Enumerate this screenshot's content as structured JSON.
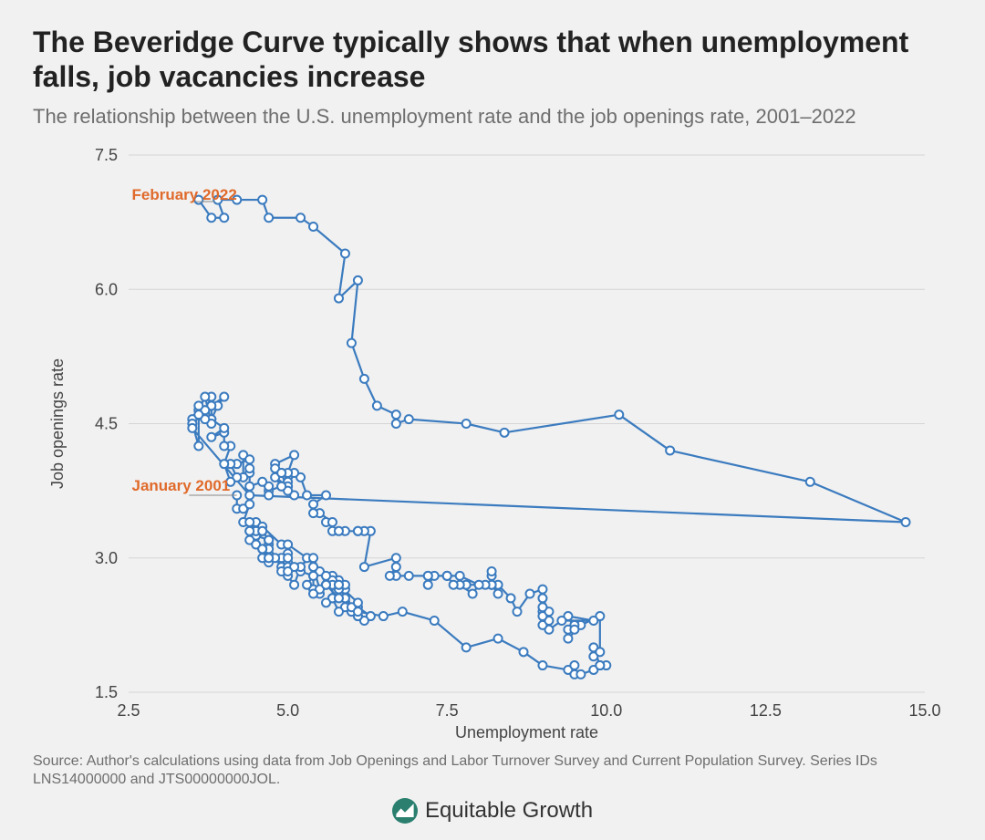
{
  "title": "The Beveridge Curve typically shows that when unemployment falls, job vacancies increase",
  "subtitle": "The relationship between the U.S. unemployment rate and the job openings rate, 2001–2022",
  "source": "Source: Author's calculations using data from Job Openings and Labor Turnover Survey and Current Population Survey. Series IDs LNS14000000 and JTS00000000JOL.",
  "brand": {
    "name": "Equitable Growth",
    "icon_bg": "#2a7f6f",
    "icon_fg": "#ffffff"
  },
  "chart": {
    "type": "connected-scatter",
    "background_color": "#f1f1f1",
    "grid_color": "#d5d5d5",
    "tick_color": "#444444",
    "tick_fontsize": 18,
    "axis_label_fontsize": 18,
    "xlabel": "Unemployment rate",
    "ylabel": "Job openings rate",
    "xlim": [
      2.5,
      15.0
    ],
    "ylim": [
      1.5,
      7.5
    ],
    "xticks": [
      2.5,
      5.0,
      7.5,
      10.0,
      12.5,
      15.0
    ],
    "yticks": [
      1.5,
      3.0,
      4.5,
      6.0,
      7.5
    ],
    "line_color": "#3b7bbf",
    "line_width": 2.2,
    "marker_fill": "#ffffff",
    "marker_stroke": "#3b7bbf",
    "marker_radius": 4.5,
    "annotations": [
      {
        "text": "February 2022",
        "color": "#e06a2b",
        "tx": 2.55,
        "ty": 7.0,
        "line_from_x": 3.55,
        "line_to_x": 3.85,
        "line_y": 6.98
      },
      {
        "text": "January 2001",
        "color": "#e06a2b",
        "tx": 2.55,
        "ty": 3.75,
        "line_from_x": 3.45,
        "line_to_x": 4.2,
        "line_y": 3.7
      }
    ],
    "data": [
      [
        4.2,
        3.7
      ],
      [
        4.2,
        3.55
      ],
      [
        4.3,
        3.55
      ],
      [
        4.4,
        3.6
      ],
      [
        4.3,
        3.4
      ],
      [
        4.5,
        3.4
      ],
      [
        4.6,
        3.35
      ],
      [
        4.9,
        3.15
      ],
      [
        5.0,
        3.15
      ],
      [
        5.3,
        3.0
      ],
      [
        5.5,
        2.85
      ],
      [
        5.7,
        2.75
      ],
      [
        5.7,
        2.8
      ],
      [
        5.7,
        2.7
      ],
      [
        5.7,
        2.7
      ],
      [
        5.9,
        2.65
      ],
      [
        5.8,
        2.75
      ],
      [
        5.8,
        2.65
      ],
      [
        5.8,
        2.65
      ],
      [
        5.7,
        2.75
      ],
      [
        5.7,
        2.55
      ],
      [
        5.7,
        2.7
      ],
      [
        5.9,
        2.7
      ],
      [
        6.0,
        2.4
      ],
      [
        5.8,
        2.7
      ],
      [
        5.9,
        2.55
      ],
      [
        5.9,
        2.45
      ],
      [
        6.0,
        2.4
      ],
      [
        6.1,
        2.45
      ],
      [
        6.3,
        2.35
      ],
      [
        6.2,
        2.3
      ],
      [
        6.1,
        2.35
      ],
      [
        6.1,
        2.35
      ],
      [
        6.0,
        2.45
      ],
      [
        5.8,
        2.4
      ],
      [
        5.7,
        2.55
      ],
      [
        5.7,
        2.55
      ],
      [
        5.6,
        2.5
      ],
      [
        5.8,
        2.55
      ],
      [
        5.6,
        2.7
      ],
      [
        5.6,
        2.7
      ],
      [
        5.6,
        2.8
      ],
      [
        5.5,
        2.6
      ],
      [
        5.4,
        2.65
      ],
      [
        5.4,
        2.9
      ],
      [
        5.5,
        2.65
      ],
      [
        5.4,
        2.6
      ],
      [
        5.4,
        2.8
      ],
      [
        5.3,
        2.7
      ],
      [
        5.4,
        2.8
      ],
      [
        5.2,
        2.85
      ],
      [
        5.2,
        2.9
      ],
      [
        5.1,
        2.7
      ],
      [
        5.0,
        2.8
      ],
      [
        5.0,
        2.9
      ],
      [
        4.9,
        2.9
      ],
      [
        5.0,
        3.0
      ],
      [
        5.0,
        2.95
      ],
      [
        5.0,
        3.05
      ],
      [
        4.9,
        3.0
      ],
      [
        4.7,
        3.0
      ],
      [
        4.8,
        3.0
      ],
      [
        4.7,
        3.15
      ],
      [
        4.7,
        3.1
      ],
      [
        4.6,
        3.0
      ],
      [
        4.6,
        3.1
      ],
      [
        4.7,
        2.95
      ],
      [
        4.7,
        3.2
      ],
      [
        4.5,
        3.25
      ],
      [
        4.4,
        3.3
      ],
      [
        4.5,
        3.3
      ],
      [
        4.4,
        3.2
      ],
      [
        4.6,
        3.3
      ],
      [
        4.5,
        3.15
      ],
      [
        4.4,
        3.4
      ],
      [
        4.5,
        3.3
      ],
      [
        4.4,
        3.3
      ],
      [
        4.6,
        3.3
      ],
      [
        4.7,
        3.2
      ],
      [
        4.6,
        3.1
      ],
      [
        4.7,
        3.2
      ],
      [
        4.7,
        3.0
      ],
      [
        4.7,
        3.0
      ],
      [
        5.0,
        2.9
      ],
      [
        5.0,
        3.0
      ],
      [
        4.9,
        2.85
      ],
      [
        5.1,
        2.9
      ],
      [
        5.0,
        2.85
      ],
      [
        5.4,
        3.0
      ],
      [
        5.6,
        2.7
      ],
      [
        5.8,
        2.7
      ],
      [
        6.1,
        2.5
      ],
      [
        6.1,
        2.4
      ],
      [
        6.5,
        2.35
      ],
      [
        6.8,
        2.4
      ],
      [
        7.3,
        2.3
      ],
      [
        7.8,
        2.0
      ],
      [
        8.3,
        2.1
      ],
      [
        8.7,
        1.95
      ],
      [
        9.0,
        1.8
      ],
      [
        9.4,
        1.75
      ],
      [
        9.5,
        1.8
      ],
      [
        9.5,
        1.7
      ],
      [
        9.6,
        1.7
      ],
      [
        9.8,
        1.75
      ],
      [
        10.0,
        1.8
      ],
      [
        9.9,
        1.8
      ],
      [
        9.9,
        1.8
      ],
      [
        9.8,
        2.0
      ],
      [
        9.8,
        1.9
      ],
      [
        9.9,
        1.95
      ],
      [
        9.9,
        2.35
      ],
      [
        9.6,
        2.25
      ],
      [
        9.4,
        2.1
      ],
      [
        9.4,
        2.2
      ],
      [
        9.5,
        2.25
      ],
      [
        9.5,
        2.2
      ],
      [
        9.4,
        2.35
      ],
      [
        9.8,
        2.3
      ],
      [
        9.3,
        2.3
      ],
      [
        9.1,
        2.2
      ],
      [
        9.0,
        2.25
      ],
      [
        9.0,
        2.4
      ],
      [
        9.1,
        2.3
      ],
      [
        9.0,
        2.35
      ],
      [
        9.1,
        2.4
      ],
      [
        9.0,
        2.55
      ],
      [
        9.0,
        2.45
      ],
      [
        9.0,
        2.65
      ],
      [
        8.8,
        2.6
      ],
      [
        8.6,
        2.4
      ],
      [
        8.5,
        2.55
      ],
      [
        8.3,
        2.7
      ],
      [
        8.3,
        2.6
      ],
      [
        8.2,
        2.7
      ],
      [
        8.2,
        2.8
      ],
      [
        8.2,
        2.7
      ],
      [
        8.2,
        2.85
      ],
      [
        8.2,
        2.7
      ],
      [
        8.1,
        2.7
      ],
      [
        7.8,
        2.7
      ],
      [
        7.8,
        2.7
      ],
      [
        7.7,
        2.7
      ],
      [
        7.9,
        2.6
      ],
      [
        8.0,
        2.7
      ],
      [
        7.7,
        2.8
      ],
      [
        7.5,
        2.8
      ],
      [
        7.6,
        2.7
      ],
      [
        7.5,
        2.8
      ],
      [
        7.5,
        2.8
      ],
      [
        7.3,
        2.8
      ],
      [
        7.2,
        2.7
      ],
      [
        7.2,
        2.8
      ],
      [
        7.2,
        2.8
      ],
      [
        6.9,
        2.8
      ],
      [
        6.7,
        2.8
      ],
      [
        6.6,
        2.8
      ],
      [
        6.7,
        2.9
      ],
      [
        6.7,
        3.0
      ],
      [
        6.2,
        2.9
      ],
      [
        6.3,
        3.3
      ],
      [
        6.1,
        3.3
      ],
      [
        6.2,
        3.3
      ],
      [
        6.1,
        3.3
      ],
      [
        5.9,
        3.3
      ],
      [
        5.7,
        3.3
      ],
      [
        5.8,
        3.3
      ],
      [
        5.6,
        3.4
      ],
      [
        5.7,
        3.4
      ],
      [
        5.5,
        3.5
      ],
      [
        5.4,
        3.5
      ],
      [
        5.4,
        3.6
      ],
      [
        5.6,
        3.7
      ],
      [
        5.3,
        3.7
      ],
      [
        5.2,
        3.9
      ],
      [
        5.1,
        3.95
      ],
      [
        5.0,
        3.8
      ],
      [
        5.0,
        3.85
      ],
      [
        5.1,
        3.7
      ],
      [
        5.0,
        3.8
      ],
      [
        4.8,
        3.9
      ],
      [
        4.9,
        3.8
      ],
      [
        5.0,
        3.95
      ],
      [
        5.1,
        4.15
      ],
      [
        4.8,
        4.05
      ],
      [
        4.9,
        3.95
      ],
      [
        4.8,
        4.0
      ],
      [
        4.9,
        3.95
      ],
      [
        5.0,
        3.75
      ],
      [
        4.9,
        3.8
      ],
      [
        4.7,
        3.75
      ],
      [
        4.7,
        3.8
      ],
      [
        4.7,
        3.7
      ],
      [
        4.6,
        3.85
      ],
      [
        4.4,
        3.8
      ],
      [
        4.4,
        3.95
      ],
      [
        4.4,
        4.0
      ],
      [
        4.3,
        3.9
      ],
      [
        4.3,
        4.15
      ],
      [
        4.4,
        4.1
      ],
      [
        4.2,
        4.05
      ],
      [
        4.1,
        4.05
      ],
      [
        4.2,
        3.9
      ],
      [
        4.1,
        3.85
      ],
      [
        4.0,
        4.05
      ],
      [
        4.1,
        4.25
      ],
      [
        4.0,
        4.25
      ],
      [
        4.0,
        4.4
      ],
      [
        3.8,
        4.35
      ],
      [
        4.0,
        4.45
      ],
      [
        3.8,
        4.55
      ],
      [
        3.8,
        4.8
      ],
      [
        3.7,
        4.65
      ],
      [
        3.8,
        4.7
      ],
      [
        3.8,
        4.55
      ],
      [
        3.9,
        4.7
      ],
      [
        4.0,
        4.8
      ],
      [
        3.8,
        4.7
      ],
      [
        3.8,
        4.5
      ],
      [
        3.7,
        4.8
      ],
      [
        3.6,
        4.65
      ],
      [
        3.6,
        4.65
      ],
      [
        3.7,
        4.65
      ],
      [
        3.7,
        4.55
      ],
      [
        3.5,
        4.55
      ],
      [
        3.6,
        4.7
      ],
      [
        3.6,
        4.6
      ],
      [
        3.6,
        4.25
      ],
      [
        3.5,
        4.5
      ],
      [
        3.5,
        4.45
      ],
      [
        4.4,
        3.7
      ],
      [
        14.7,
        3.4
      ],
      [
        13.2,
        3.85
      ],
      [
        11.0,
        4.2
      ],
      [
        10.2,
        4.6
      ],
      [
        8.4,
        4.4
      ],
      [
        7.8,
        4.5
      ],
      [
        6.9,
        4.55
      ],
      [
        6.7,
        4.5
      ],
      [
        6.7,
        4.6
      ],
      [
        6.4,
        4.7
      ],
      [
        6.2,
        5.0
      ],
      [
        6.0,
        5.4
      ],
      [
        6.1,
        6.1
      ],
      [
        5.8,
        5.9
      ],
      [
        5.9,
        6.4
      ],
      [
        5.4,
        6.7
      ],
      [
        5.2,
        6.8
      ],
      [
        4.7,
        6.8
      ],
      [
        4.6,
        7.0
      ],
      [
        4.2,
        7.0
      ],
      [
        3.9,
        7.0
      ],
      [
        4.0,
        6.8
      ],
      [
        3.8,
        6.8
      ],
      [
        3.6,
        7.0
      ]
    ]
  }
}
